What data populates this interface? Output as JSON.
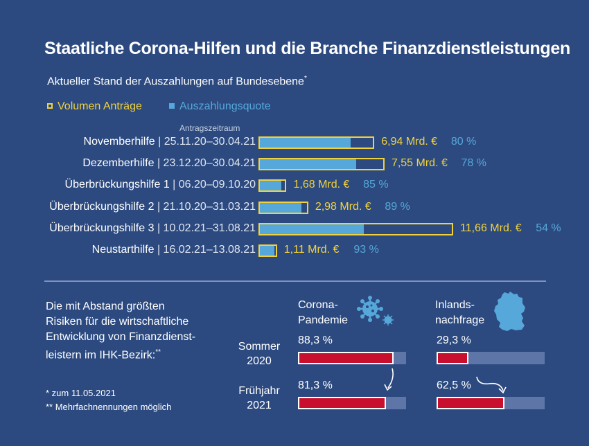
{
  "title": "Staatliche Corona-Hilfen und die Branche Finanzdienstleistungen",
  "subtitle": "Aktueller Stand der Auszahlungen auf Bundesebene",
  "subtitle_mark": "*",
  "legend": {
    "volume": "Volumen Anträge",
    "quota": "Auszahlungsquote"
  },
  "period_header": "Antragszeitraum",
  "colors": {
    "background": "#2c4a80",
    "volume": "#f2d23a",
    "quota": "#56a8da",
    "risk": "#c8102e",
    "track": "#5d76a7"
  },
  "chart_data": [
    {
      "type": "bar",
      "title": "Staatliche Corona-Hilfen und die Branche Finanzdienstleistungen",
      "subtitle": "Aktueller Stand der Auszahlungen auf Bundesebene*",
      "series": [
        {
          "name": "Volumen Anträge",
          "unit": "Mrd. €"
        },
        {
          "name": "Auszahlungsquote",
          "unit": "%"
        }
      ],
      "rows": [
        {
          "name": "Novemberhilfe",
          "period": "25.11.20–30.04.21",
          "volume": 6.94,
          "volume_label": "6,94 Mrd. €",
          "quota": 80,
          "quota_label": "80 %"
        },
        {
          "name": "Dezemberhilfe",
          "period": "23.12.20–30.04.21",
          "volume": 7.55,
          "volume_label": "7,55 Mrd. €",
          "quota": 78,
          "quota_label": "78 %"
        },
        {
          "name": "Überbrückungshilfe 1",
          "period": "06.20–09.10.20",
          "volume": 1.68,
          "volume_label": "1,68 Mrd. €",
          "quota": 85,
          "quota_label": "85 %"
        },
        {
          "name": "Überbrückungshilfe 2",
          "period": "21.10.20–31.03.21",
          "volume": 2.98,
          "volume_label": "2,98 Mrd. €",
          "quota": 89,
          "quota_label": "89 %"
        },
        {
          "name": "Überbrückungshilfe 3",
          "period": "10.02.21–31.08.21",
          "volume": 11.66,
          "volume_label": "11,66 Mrd. €",
          "quota": 54,
          "quota_label": "54 %"
        },
        {
          "name": "Neustarthilfe",
          "period": "16.02.21–13.08.21",
          "volume": 1.11,
          "volume_label": "1,11 Mrd. €",
          "quota": 93,
          "quota_label": "93 %"
        }
      ]
    },
    {
      "type": "bar",
      "title": "Die mit Abstand größten Risiken für die wirtschaftliche Entwicklung von Finanzdienstleistern im IHK-Bezirk:**",
      "categories": [
        "Corona-Pandemie",
        "Inlandsnachfrage"
      ],
      "series": [
        {
          "name": "Sommer 2020",
          "values": [
            88.3,
            29.3
          ],
          "labels": [
            "88,3 %",
            "29,3 %"
          ]
        },
        {
          "name": "Frühjahr 2021",
          "values": [
            81.3,
            62.5
          ],
          "labels": [
            "81,3 %",
            "62,5 %"
          ]
        }
      ],
      "ylim": [
        0,
        100
      ]
    }
  ],
  "risks": {
    "text_lines": [
      "Die mit Abstand größten",
      "Risiken für die wirtschaftliche",
      "Entwicklung von Finanzdienst-",
      "leistern im IHK-Bezirk:"
    ],
    "text_mark": "**",
    "col1": [
      "Corona-",
      "Pandemie"
    ],
    "col2": [
      "Inlands-",
      "nachfrage"
    ],
    "p1": [
      "Sommer",
      "2020"
    ],
    "p2": [
      "Frühjahr",
      "2021"
    ],
    "icons": [
      "virus-icon",
      "germany-map-icon"
    ]
  },
  "footnotes": [
    "* zum 11.05.2021",
    "** Mehrfachnennungen möglich"
  ]
}
